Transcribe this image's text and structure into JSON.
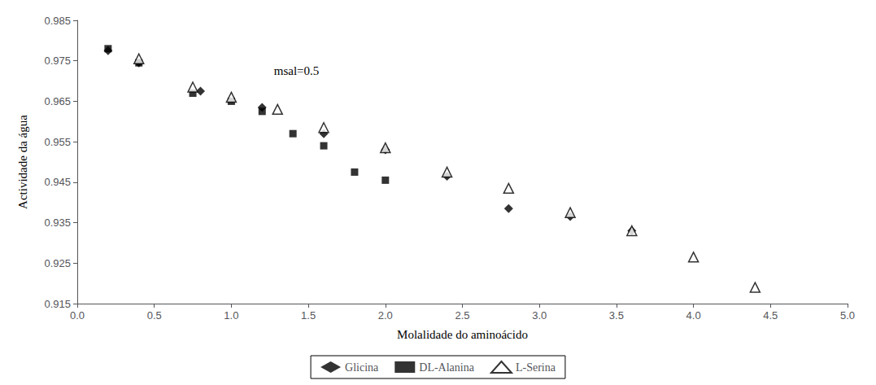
{
  "chart_data": {
    "type": "scatter",
    "xlabel": "Molalidade do aminoácido",
    "ylabel": "Actividade da água",
    "series": [
      {
        "name": "Glicina",
        "color": "#000000",
        "marker": "diamond",
        "x": [
          0.2,
          0.4,
          0.8,
          1.2,
          1.6,
          2.0,
          2.4,
          2.8,
          3.2,
          3.6
        ],
        "values": [
          0.9775,
          0.9745,
          0.9675,
          0.9635,
          0.957,
          0.953,
          0.9465,
          0.9385,
          0.9365,
          0.933
        ]
      },
      {
        "name": "DL-Alanina",
        "color": "#000000",
        "marker": "square",
        "x": [
          0.2,
          0.4,
          0.75,
          1.0,
          1.2,
          1.4,
          1.6,
          1.8,
          2.0
        ],
        "values": [
          0.978,
          0.9745,
          0.967,
          0.965,
          0.9625,
          0.957,
          0.954,
          0.9475,
          0.9455
        ]
      },
      {
        "name": "L-Serina",
        "color": "#000000",
        "marker": "triangle-open",
        "x": [
          0.4,
          0.75,
          1.0,
          1.3,
          1.6,
          2.0,
          2.4,
          2.8,
          3.2,
          3.6,
          4.0,
          4.4
        ],
        "values": [
          0.9755,
          0.9685,
          0.966,
          0.963,
          0.9585,
          0.9535,
          0.9475,
          0.9435,
          0.9375,
          0.933,
          0.9265,
          0.919
        ]
      }
    ],
    "annotations": [
      {
        "text": "msal=0.5",
        "x": 1.25,
        "y": 0.9725
      }
    ],
    "xlim": [
      0.0,
      5.0
    ],
    "ylim": [
      0.915,
      0.985
    ],
    "xticks": [
      {
        "value": 0.0,
        "label": "0.0"
      },
      0.5,
      {
        "value": 1.0,
        "label": "1.0"
      },
      1.5,
      {
        "value": 2.0,
        "label": "2.0"
      },
      2.5,
      {
        "value": 3.0,
        "label": "3.0"
      },
      3.5,
      {
        "value": 4.0,
        "label": "4.0"
      },
      4.5,
      {
        "value": 5.0,
        "label": "5.0"
      }
    ],
    "yticks": [
      0.915,
      0.925,
      0.935,
      0.945,
      0.955,
      0.965,
      0.975,
      0.985
    ],
    "grid": false,
    "legend": "bottom"
  }
}
